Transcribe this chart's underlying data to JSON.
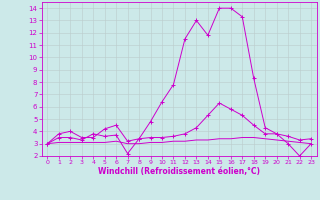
{
  "xlabel": "Windchill (Refroidissement éolien,°C)",
  "xlim": [
    -0.5,
    23.5
  ],
  "ylim": [
    2,
    14.5
  ],
  "yticks": [
    2,
    3,
    4,
    5,
    6,
    7,
    8,
    9,
    10,
    11,
    12,
    13,
    14
  ],
  "xticks": [
    0,
    1,
    2,
    3,
    4,
    5,
    6,
    7,
    8,
    9,
    10,
    11,
    12,
    13,
    14,
    15,
    16,
    17,
    18,
    19,
    20,
    21,
    22,
    23
  ],
  "bg_color": "#cce9e9",
  "line_color": "#cc00cc",
  "grid_color": "#bbcccc",
  "series": [
    {
      "x": [
        0,
        1,
        2,
        3,
        4,
        5,
        6,
        7,
        8,
        9,
        10,
        11,
        12,
        13,
        14,
        15,
        16,
        17,
        18,
        19,
        20,
        21,
        22,
        23
      ],
      "y": [
        3.0,
        3.5,
        3.5,
        3.3,
        3.8,
        3.6,
        3.7,
        2.2,
        3.4,
        4.8,
        6.4,
        7.8,
        11.5,
        13.0,
        11.8,
        14.0,
        14.0,
        13.3,
        8.3,
        4.3,
        3.8,
        3.0,
        2.0,
        3.0
      ],
      "marker": "+"
    },
    {
      "x": [
        0,
        1,
        2,
        3,
        4,
        5,
        6,
        7,
        8,
        9,
        10,
        11,
        12,
        13,
        14,
        15,
        16,
        17,
        18,
        19,
        20,
        21,
        22,
        23
      ],
      "y": [
        3.0,
        3.1,
        3.1,
        3.1,
        3.1,
        3.1,
        3.2,
        3.0,
        3.0,
        3.1,
        3.1,
        3.2,
        3.2,
        3.3,
        3.3,
        3.4,
        3.4,
        3.5,
        3.5,
        3.4,
        3.3,
        3.2,
        3.1,
        3.0
      ],
      "marker": null
    },
    {
      "x": [
        0,
        1,
        2,
        3,
        4,
        5,
        6,
        7,
        8,
        9,
        10,
        11,
        12,
        13,
        14,
        15,
        16,
        17,
        18,
        19,
        20,
        21,
        22,
        23
      ],
      "y": [
        3.0,
        3.8,
        4.0,
        3.5,
        3.5,
        4.2,
        4.5,
        3.2,
        3.4,
        3.5,
        3.5,
        3.6,
        3.8,
        4.3,
        5.3,
        6.3,
        5.8,
        5.3,
        4.5,
        3.8,
        3.8,
        3.6,
        3.3,
        3.4
      ],
      "marker": "+"
    }
  ]
}
